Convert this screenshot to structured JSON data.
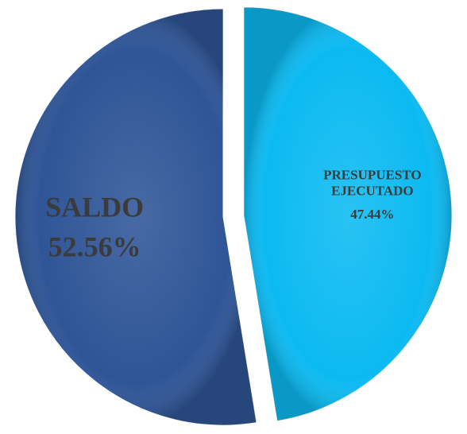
{
  "chart_data": {
    "type": "pie",
    "categories": [
      "PRESUPUESTO EJECUTADO",
      "SALDO"
    ],
    "values": [
      47.44,
      52.56
    ],
    "value_labels": [
      "47.44%",
      "52.56%"
    ],
    "colors": [
      "#0cbaf2",
      "#2f5597"
    ]
  }
}
